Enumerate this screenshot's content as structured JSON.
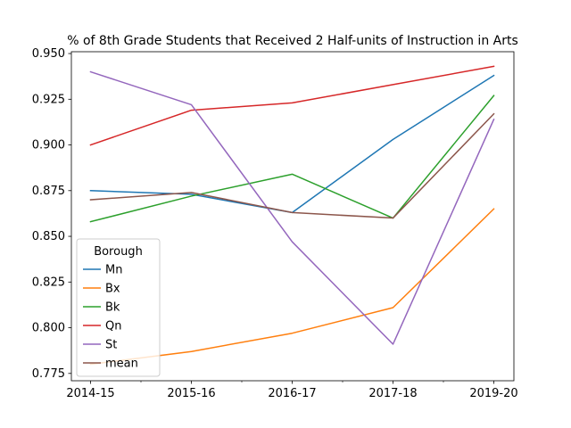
{
  "chart_data": {
    "type": "line",
    "title": "% of 8th Grade Students that Received 2 Half-units of Instruction in Arts",
    "xlabel": "",
    "ylabel": "",
    "categories": [
      "2014-15",
      "2015-16",
      "2016-17",
      "2017-18",
      "2019-20"
    ],
    "ylim": [
      0.771,
      0.951
    ],
    "yticks": [
      0.775,
      0.8,
      0.825,
      0.85,
      0.875,
      0.9,
      0.925,
      0.95
    ],
    "ytick_labels": [
      "0.775",
      "0.800",
      "0.825",
      "0.850",
      "0.875",
      "0.900",
      "0.925",
      "0.950"
    ],
    "grid": false,
    "legend": {
      "title": "Borough",
      "placement": "lower-left"
    },
    "series": [
      {
        "name": "Mn",
        "color": "#1f77b4",
        "values": [
          0.875,
          0.873,
          0.863,
          0.903,
          0.938
        ]
      },
      {
        "name": "Bx",
        "color": "#ff7f0e",
        "values": [
          0.78,
          0.787,
          0.797,
          0.811,
          0.865
        ]
      },
      {
        "name": "Bk",
        "color": "#2ca02c",
        "values": [
          0.858,
          0.872,
          0.884,
          0.86,
          0.927
        ]
      },
      {
        "name": "Qn",
        "color": "#d62728",
        "values": [
          0.9,
          0.919,
          0.923,
          0.933,
          0.943
        ]
      },
      {
        "name": "St",
        "color": "#9467bd",
        "values": [
          0.94,
          0.922,
          0.847,
          0.791,
          0.914
        ]
      },
      {
        "name": "mean",
        "color": "#8c564b",
        "values": [
          0.87,
          0.874,
          0.863,
          0.86,
          0.917
        ]
      }
    ]
  }
}
